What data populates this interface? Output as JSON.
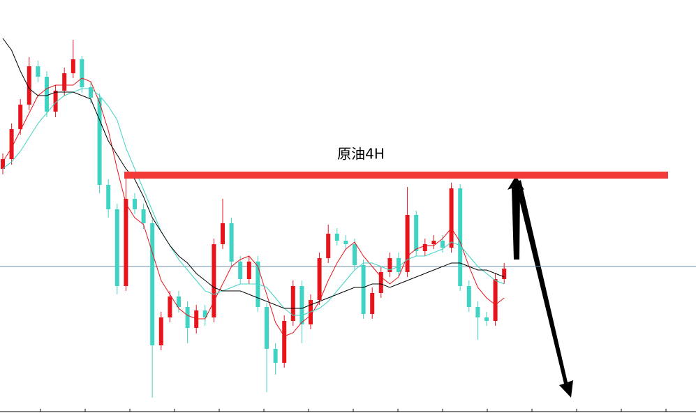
{
  "chart_data": {
    "type": "candlestick",
    "annotation": "原油4H",
    "ylim": [
      0,
      592
    ],
    "up_color": "#e8141b",
    "down_color": "#3fd3c3",
    "open": [
      350,
      364,
      407,
      442,
      497,
      482,
      432,
      462,
      487,
      507,
      467,
      452,
      327,
      292,
      182,
      307,
      292,
      272,
      97,
      137,
      167,
      152,
      122,
      147,
      137,
      242,
      272,
      217,
      192,
      217,
      152,
      92,
      72,
      132,
      182,
      127,
      162,
      222,
      257,
      247,
      242,
      212,
      142,
      172,
      202,
      222,
      202,
      284,
      232,
      242,
      247,
      237,
      322,
      182,
      152,
      137,
      132,
      192
    ],
    "high": [
      372,
      415,
      450,
      510,
      505,
      490,
      470,
      495,
      535,
      512,
      475,
      458,
      335,
      300,
      337,
      315,
      300,
      278,
      145,
      175,
      175,
      160,
      155,
      155,
      250,
      307,
      280,
      225,
      225,
      225,
      158,
      100,
      140,
      190,
      190,
      170,
      230,
      270,
      265,
      255,
      250,
      220,
      180,
      210,
      230,
      230,
      324,
      290,
      250,
      255,
      255,
      330,
      328,
      190,
      160,
      145,
      200,
      215
    ],
    "low": [
      342,
      356,
      399,
      434,
      474,
      424,
      424,
      454,
      480,
      459,
      444,
      315,
      280,
      170,
      175,
      285,
      264,
      22,
      90,
      130,
      144,
      100,
      114,
      125,
      130,
      235,
      210,
      185,
      185,
      145,
      30,
      55,
      65,
      125,
      100,
      120,
      155,
      215,
      240,
      235,
      205,
      135,
      135,
      165,
      195,
      195,
      195,
      225,
      225,
      235,
      230,
      230,
      175,
      145,
      105,
      125,
      125,
      185
    ],
    "close": [
      364,
      407,
      442,
      497,
      482,
      432,
      462,
      487,
      507,
      467,
      452,
      327,
      292,
      182,
      307,
      292,
      272,
      97,
      137,
      167,
      152,
      122,
      147,
      137,
      242,
      272,
      217,
      192,
      217,
      152,
      92,
      72,
      132,
      182,
      127,
      162,
      222,
      257,
      247,
      242,
      212,
      142,
      172,
      202,
      222,
      202,
      284,
      232,
      242,
      247,
      237,
      322,
      182,
      152,
      137,
      132,
      192,
      207
    ],
    "series": [
      {
        "color": "#e8141b",
        "values": [
          360,
          380,
          405,
          430,
          455,
          465,
          470,
          470,
          470,
          480,
          475,
          445,
          405,
          350,
          300,
          280,
          270,
          230,
          190,
          170,
          150,
          140,
          135,
          135,
          160,
          185,
          210,
          220,
          225,
          210,
          170,
          130,
          110,
          115,
          130,
          140,
          160,
          190,
          215,
          235,
          245,
          225,
          210,
          195,
          185,
          195,
          225,
          235,
          240,
          240,
          250,
          265,
          245,
          210,
          180,
          165,
          155,
          165
        ]
      },
      {
        "color": "#3fd3c3",
        "values": [
          350,
          360,
          375,
          395,
          415,
          430,
          445,
          455,
          460,
          465,
          465,
          455,
          440,
          420,
          380,
          350,
          320,
          290,
          260,
          240,
          220,
          205,
          190,
          175,
          170,
          175,
          180,
          185,
          185,
          185,
          180,
          165,
          150,
          140,
          140,
          145,
          150,
          160,
          175,
          190,
          205,
          215,
          215,
          210,
          205,
          210,
          220,
          225,
          225,
          230,
          235,
          245,
          240,
          225,
          210,
          200,
          190,
          185
        ]
      },
      {
        "color": "#000000",
        "values": [
          537,
          520,
          490,
          465,
          455,
          455,
          460,
          460,
          460,
          455,
          450,
          420,
          390,
          370,
          350,
          335,
          310,
          280,
          260,
          240,
          225,
          215,
          200,
          190,
          180,
          175,
          175,
          175,
          170,
          165,
          160,
          155,
          150,
          150,
          150,
          155,
          160,
          165,
          170,
          175,
          180,
          180,
          185,
          185,
          180,
          185,
          190,
          195,
          200,
          205,
          210,
          215,
          215,
          210,
          205,
          205,
          200,
          195
        ]
      }
    ],
    "resistance": {
      "value": 341,
      "color": "#f23a3a"
    },
    "price_line": {
      "value": 210,
      "color": "#6f8fa8"
    }
  }
}
